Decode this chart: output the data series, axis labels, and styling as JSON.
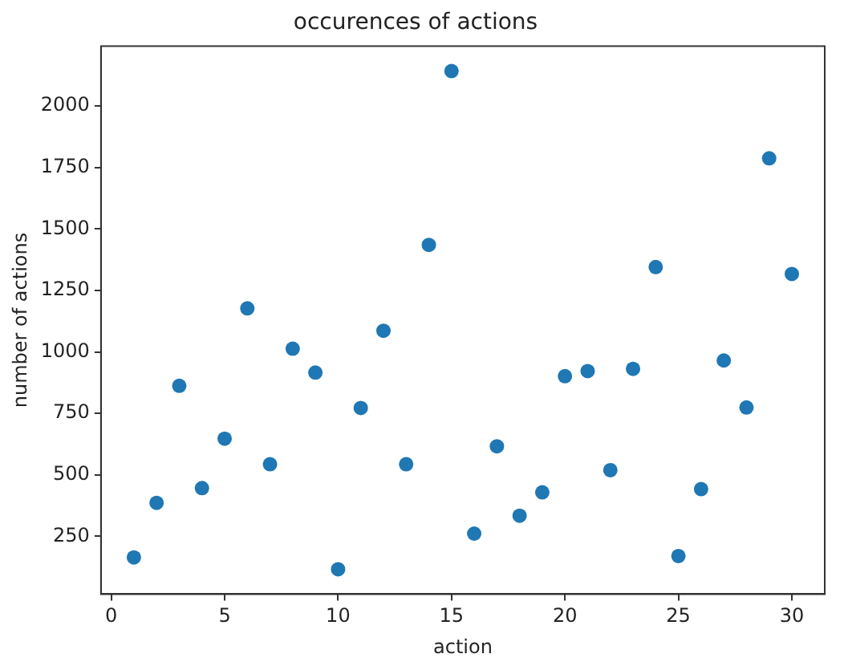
{
  "chart_data": {
    "type": "scatter",
    "title": "occurences of actions",
    "xlabel": "action",
    "ylabel": "number of actions",
    "x": [
      1,
      2,
      3,
      4,
      5,
      6,
      7,
      8,
      9,
      10,
      11,
      12,
      13,
      14,
      15,
      16,
      17,
      18,
      19,
      20,
      21,
      22,
      23,
      24,
      25,
      26,
      27,
      28,
      29,
      30
    ],
    "series": [
      {
        "color": "#1f77b4",
        "values": [
          164,
          386,
          862,
          446,
          647,
          1177,
          543,
          1013,
          916,
          116,
          772,
          1086,
          543,
          1435,
          2142,
          261,
          616,
          334,
          429,
          901,
          922,
          519,
          931,
          1345,
          170,
          442,
          965,
          774,
          1787,
          1317
        ]
      }
    ],
    "xlim": [
      -0.45,
      31.45
    ],
    "xticks": [
      0,
      5,
      10,
      15,
      20,
      25,
      30
    ],
    "ylim": [
      15,
      2243
    ],
    "yticks": [
      250,
      500,
      750,
      1000,
      1250,
      1500,
      1750,
      2000
    ],
    "marker": "circle",
    "grid": false,
    "legend": false
  }
}
